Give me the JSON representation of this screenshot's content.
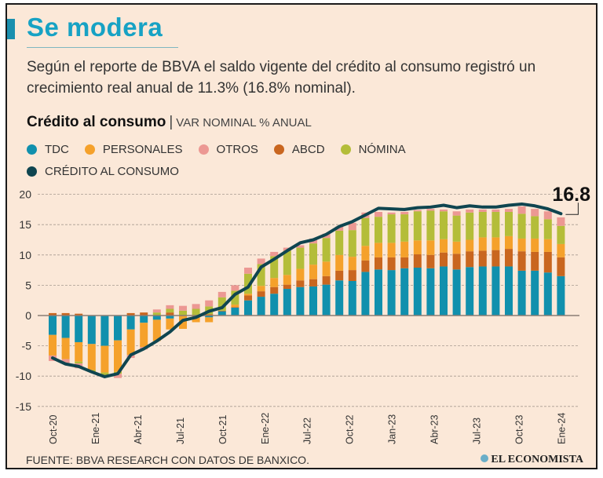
{
  "header": {
    "title": "Se modera",
    "description": "Según el reporte de BBVA el saldo vigente del crédito al consumo registró un crecimiento real anual de 11.3% (16.8% nominal).",
    "chart_title": "Crédito al consumo",
    "chart_subtitle": "VAR NOMINAL % ANUAL"
  },
  "legend": [
    {
      "label": "TDC",
      "color": "#1190ad"
    },
    {
      "label": "PERSONALES",
      "color": "#f5a12b"
    },
    {
      "label": "OTROS",
      "color": "#ec9893"
    },
    {
      "label": "ABCD",
      "color": "#c9661f"
    },
    {
      "label": "NÓMINA",
      "color": "#b4bd39"
    },
    {
      "label": "CRÉDITO AL CONSUMO",
      "color": "#0f4550"
    }
  ],
  "chart_data": {
    "type": "bar",
    "stacked": true,
    "ylim": [
      -15,
      20
    ],
    "yticks": [
      "20",
      "15",
      "10",
      "5",
      "0",
      "-5",
      "-10",
      "-15"
    ],
    "grid": true,
    "xtick_labels": [
      "Oct-20",
      "Ene-21",
      "Abr-21",
      "Jul-21",
      "Oct-21",
      "Ene-22",
      "Jul-22",
      "Oct-22",
      "Jan-23",
      "Abr-23",
      "Jul-23",
      "Oct-23",
      "Ene-24"
    ],
    "series": [
      {
        "name": "TDC",
        "color": "#1190ad",
        "values": [
          -3.2,
          -3.7,
          -4.4,
          -4.7,
          -5.0,
          -4.1,
          -2.3,
          -1.2,
          -0.7,
          -0.5,
          0,
          0,
          -0.3,
          0.7,
          1.3,
          2.5,
          3.1,
          3.6,
          4.4,
          4.7,
          4.8,
          5.1,
          5.8,
          5.7,
          7.2,
          7.6,
          7.5,
          7.8,
          7.9,
          7.8,
          8.1,
          7.6,
          8.0,
          8.1,
          8.1,
          8.1,
          7.4,
          7.4,
          7.1,
          6.5
        ]
      },
      {
        "name": "ABCD",
        "color": "#c9661f",
        "values": [
          0.4,
          0.4,
          0.3,
          0,
          0,
          0,
          0.4,
          0.5,
          0,
          0.5,
          0,
          0,
          0.2,
          0.1,
          0.1,
          0.8,
          0.9,
          1.1,
          0.7,
          1.1,
          1.2,
          1.4,
          1.6,
          1.8,
          1.9,
          2.0,
          2.1,
          1.8,
          2.2,
          2.2,
          2.3,
          2.6,
          2.6,
          2.6,
          2.7,
          2.9,
          3.2,
          3.1,
          3.4,
          3.1
        ]
      },
      {
        "name": "PERSONALES",
        "color": "#f5a12b",
        "values": [
          -3.4,
          -3.5,
          -3.2,
          -4.3,
          -4.4,
          -5.2,
          -4.2,
          -4.0,
          -3.5,
          -1.8,
          -2.2,
          -1.1,
          -0.8,
          0,
          0.4,
          0.3,
          0.9,
          1.5,
          1.6,
          1.9,
          2.4,
          2.4,
          2.6,
          2.2,
          2.4,
          2.4,
          2.4,
          2.6,
          2.3,
          2.4,
          2.2,
          2.0,
          1.9,
          2.2,
          2.1,
          2.1,
          2.1,
          2.2,
          2.1,
          2.2
        ]
      },
      {
        "name": "NÓMINA",
        "color": "#b4bd39",
        "values": [
          0,
          0,
          -0.3,
          -0.3,
          -0.5,
          -0.3,
          0,
          0,
          0.5,
          0.6,
          0.8,
          1.1,
          1.3,
          2.2,
          2.3,
          3.3,
          3.6,
          3.6,
          4.0,
          3.5,
          3.5,
          3.9,
          4.0,
          4.4,
          4.6,
          4.3,
          4.7,
          4.5,
          4.8,
          4.9,
          4.6,
          4.3,
          4.5,
          4.2,
          4.2,
          4.0,
          4.1,
          3.7,
          3.3,
          3.0
        ]
      },
      {
        "name": "OTROS",
        "color": "#ec9893",
        "values": [
          -0.9,
          -0.7,
          -0.8,
          0,
          -0.2,
          -0.7,
          -0.5,
          -0.4,
          0.5,
          0.6,
          0.8,
          0.8,
          1.0,
          0.9,
          0.9,
          1.0,
          0.9,
          0.7,
          0.5,
          0.4,
          0.8,
          0.7,
          0.7,
          1.2,
          0.9,
          0.8,
          0.3,
          0.4,
          0.2,
          0.3,
          0.3,
          0.7,
          0.5,
          0.4,
          0.4,
          0.5,
          1.2,
          1.2,
          1.3,
          1.4
        ]
      }
    ],
    "line": {
      "name": "CRÉDITO AL CONSUMO",
      "color": "#0f4550",
      "values": [
        -7.0,
        -8.0,
        -8.4,
        -9.3,
        -10.1,
        -9.6,
        -6.5,
        -5.5,
        -4.2,
        -2.7,
        -0.8,
        -0.3,
        0.7,
        1.3,
        3.5,
        4.7,
        8.0,
        9.3,
        10.7,
        12.0,
        12.5,
        13.4,
        14.7,
        15.5,
        16.6,
        17.7,
        17.6,
        17.5,
        17.8,
        17.9,
        18.2,
        17.8,
        18.1,
        17.9,
        17.9,
        18.2,
        18.4,
        18.1,
        17.6,
        16.8
      ]
    },
    "annotation": "16.8"
  },
  "footer": {
    "source": "FUENTE: BBVA RESEARCH CON DATOS DE BANXICO.",
    "logo": "EL ECONOMISTA"
  }
}
